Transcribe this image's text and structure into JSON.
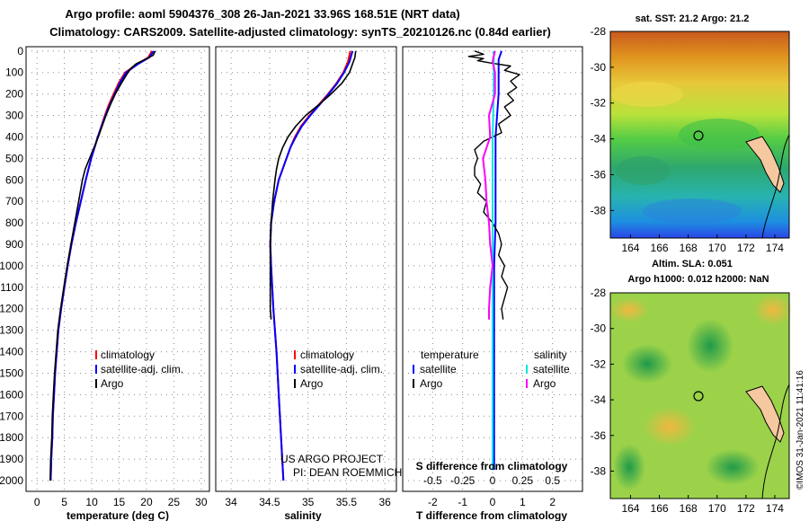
{
  "title_line1": "Argo profile: aoml 5904376_308 26-Jan-2021 33.96S 168.51E (NRT data)",
  "title_line2": "Climatology: CARS2009. Satellite-adjusted climatology: synTS_20210126.nc (0.84d earlier)",
  "credit": "©IMOS 31-Jan-2021 11:41:16",
  "colors": {
    "climatology": "#ff0000",
    "satellite_adj": "#0000ff",
    "argo": "#000000",
    "sal_satellite": "#00e5e5",
    "sal_argo": "#ff00ff"
  },
  "depth_ticks": [
    "0",
    "100",
    "200",
    "300",
    "400",
    "500",
    "600",
    "700",
    "800",
    "900",
    "1000",
    "1100",
    "1200",
    "1300",
    "1400",
    "1500",
    "1600",
    "1700",
    "1800",
    "1900",
    "2000"
  ],
  "chart_data": [
    {
      "type": "line",
      "name": "temperature",
      "xlabel": "temperature (deg C)",
      "ylabel": "depth",
      "xlim": [
        -2,
        31.5
      ],
      "ylim": [
        2050,
        -20
      ],
      "xticks": [
        "0",
        "5",
        "10",
        "15",
        "20",
        "25",
        "30"
      ],
      "legend": [
        "climatology",
        "satellite-adj. clim.",
        "Argo"
      ],
      "series": [
        {
          "name": "climatology",
          "depth": [
            0,
            30,
            60,
            100,
            150,
            200,
            250,
            300,
            400,
            500,
            600,
            700,
            800,
            900,
            1000,
            1100,
            1200,
            1300,
            1400,
            1500,
            1600,
            1700,
            1800,
            1900,
            2000
          ],
          "values": [
            21.0,
            20.3,
            18.4,
            16.1,
            14.9,
            14.0,
            13.1,
            12.4,
            11.1,
            9.9,
            8.9,
            8.0,
            7.1,
            6.3,
            5.6,
            5.0,
            4.4,
            3.9,
            3.6,
            3.3,
            3.1,
            2.9,
            2.8,
            2.6,
            2.5
          ]
        },
        {
          "name": "satellite-adj. clim.",
          "depth": [
            0,
            30,
            60,
            100,
            150,
            200,
            250,
            300,
            400,
            500,
            600,
            700,
            800,
            900,
            1000,
            1100,
            1200,
            1300,
            1400,
            1500,
            1600,
            1700,
            1800,
            1900,
            2000
          ],
          "values": [
            21.3,
            20.5,
            18.5,
            16.3,
            15.1,
            14.2,
            13.3,
            12.5,
            11.1,
            9.9,
            8.9,
            8.0,
            7.1,
            6.3,
            5.6,
            5.0,
            4.4,
            3.9,
            3.6,
            3.3,
            3.1,
            2.9,
            2.8,
            2.6,
            2.5
          ]
        },
        {
          "name": "Argo",
          "depth": [
            0,
            20,
            40,
            60,
            80,
            100,
            150,
            200,
            250,
            300,
            350,
            400,
            450,
            500,
            550,
            600,
            700,
            800,
            900,
            1000,
            1100,
            1200,
            1300,
            1400,
            1500,
            1600,
            1700,
            1800,
            1900,
            2000
          ],
          "values": [
            21.6,
            21.2,
            19.7,
            18.1,
            17.2,
            16.6,
            15.4,
            14.3,
            13.4,
            12.6,
            11.9,
            11.2,
            10.4,
            9.6,
            8.8,
            8.3,
            7.6,
            6.9,
            6.2,
            5.5,
            4.9,
            4.3,
            3.8,
            3.5,
            3.2,
            3.0,
            2.8,
            2.7,
            2.5,
            2.4
          ]
        }
      ]
    },
    {
      "type": "line",
      "name": "salinity",
      "xlabel": "salinity",
      "ylabel": "depth",
      "xlim": [
        33.8,
        36.15
      ],
      "ylim": [
        2050,
        -20
      ],
      "xticks": [
        "34",
        "34.5",
        "35",
        "35.5",
        "36"
      ],
      "legend": [
        "climatology",
        "satellite-adj. clim.",
        "Argo"
      ],
      "annotation": [
        "US ARGO PROJECT",
        "PI: DEAN ROEMMICH"
      ],
      "series": [
        {
          "name": "climatology",
          "depth": [
            0,
            50,
            100,
            150,
            200,
            250,
            300,
            350,
            400,
            450,
            500,
            600,
            700,
            800,
            900,
            1000,
            1200,
            1400,
            1600,
            1800,
            2000
          ],
          "values": [
            35.55,
            35.52,
            35.46,
            35.37,
            35.26,
            35.14,
            35.02,
            34.91,
            34.83,
            34.77,
            34.72,
            34.62,
            34.56,
            34.52,
            34.51,
            34.52,
            34.55,
            34.59,
            34.62,
            34.65,
            34.68
          ]
        },
        {
          "name": "satellite-adj. clim.",
          "depth": [
            0,
            50,
            100,
            150,
            200,
            250,
            300,
            350,
            400,
            450,
            500,
            600,
            700,
            800,
            900,
            1000,
            1200,
            1400,
            1600,
            1800,
            2000
          ],
          "values": [
            35.58,
            35.54,
            35.47,
            35.38,
            35.27,
            35.15,
            35.03,
            34.92,
            34.84,
            34.77,
            34.72,
            34.62,
            34.56,
            34.52,
            34.51,
            34.52,
            34.55,
            34.59,
            34.62,
            34.65,
            34.68
          ]
        },
        {
          "name": "Argo",
          "depth": [
            0,
            30,
            60,
            100,
            150,
            200,
            250,
            300,
            350,
            400,
            450,
            500,
            550,
            600,
            700,
            800,
            900,
            1000,
            1100,
            1200,
            1250
          ],
          "values": [
            35.62,
            35.61,
            35.58,
            35.54,
            35.44,
            35.3,
            35.14,
            34.97,
            34.84,
            34.74,
            34.67,
            34.62,
            34.59,
            34.57,
            34.54,
            34.52,
            34.51,
            34.51,
            34.51,
            34.51,
            34.52
          ]
        }
      ]
    },
    {
      "type": "line",
      "name": "difference",
      "xlabel": "T difference from climatology",
      "top_xlabel": "S difference from climatology",
      "xlim": [
        -3,
        3
      ],
      "ylim": [
        2050,
        -20
      ],
      "xticks": [
        "-2",
        "-1",
        "0",
        "1",
        "2"
      ],
      "top_xticks": [
        "-0.5",
        "-0.25",
        "0",
        "0.25",
        "0.5"
      ],
      "legend": {
        "temperature": [
          "satellite",
          "Argo"
        ],
        "salinity": [
          "satellite",
          "Argo"
        ]
      },
      "series": [
        {
          "name": "temperature satellite",
          "depth": [
            0,
            40,
            100,
            200,
            400,
            600,
            800,
            1000,
            1200,
            1400,
            1600,
            1800,
            1950
          ],
          "values": [
            0.3,
            0.2,
            0.2,
            0.2,
            0.1,
            0.1,
            0.1,
            0.05,
            0.05,
            0.05,
            0.05,
            0.05,
            0.05
          ]
        },
        {
          "name": "temperature Argo",
          "depth": [
            0,
            15,
            25,
            35,
            45,
            55,
            70,
            90,
            110,
            140,
            170,
            200,
            230,
            260,
            300,
            340,
            380,
            420,
            460,
            500,
            540,
            580,
            620,
            660,
            700,
            750,
            800,
            850,
            900,
            950,
            1000,
            1050,
            1100,
            1150,
            1200,
            1250
          ],
          "values": [
            -0.6,
            -0.3,
            -0.8,
            -0.3,
            -0.5,
            -0.1,
            0.6,
            0.4,
            0.9,
            0.6,
            0.8,
            0.5,
            0.7,
            0.4,
            0.6,
            0.2,
            0.3,
            -0.3,
            -0.6,
            -0.5,
            -0.6,
            -0.6,
            -0.4,
            -0.5,
            -0.2,
            -0.3,
            0.0,
            0.2,
            0.3,
            0.2,
            0.4,
            0.3,
            0.5,
            0.4,
            0.3,
            0.35
          ]
        },
        {
          "name": "salinity satellite",
          "depth": [
            0,
            100,
            200,
            400,
            600,
            800,
            1000,
            1200,
            1400,
            1600,
            1800,
            1950
          ],
          "values": [
            0.01,
            0.01,
            0.01,
            0.0,
            0.0,
            0.0,
            0.0,
            0.0,
            0.0,
            0.0,
            0.0,
            0.0
          ]
        },
        {
          "name": "salinity Argo",
          "depth": [
            0,
            50,
            100,
            200,
            300,
            400,
            500,
            600,
            700,
            800,
            900,
            1000,
            1100,
            1200,
            1250
          ],
          "values": [
            0.02,
            0.0,
            0.02,
            0.02,
            -0.03,
            -0.02,
            -0.08,
            -0.06,
            -0.05,
            -0.03,
            -0.02,
            0.0,
            -0.02,
            -0.03,
            -0.03
          ]
        }
      ]
    },
    {
      "type": "heatmap",
      "name": "sst_map",
      "title": "sat. SST: 21.2 Argo: 21.2",
      "xticks": [
        "164",
        "166",
        "168",
        "170",
        "172",
        "174"
      ],
      "yticks": [
        "-28",
        "-30",
        "-32",
        "-34",
        "-36",
        "-38"
      ],
      "marker": {
        "lon": 168.51,
        "lat": -33.96
      }
    },
    {
      "type": "heatmap",
      "name": "sla_map",
      "title_line1": "Altim. SLA: 0.051",
      "title_line2": "Argo h1000: 0.012 h2000: NaN",
      "xticks": [
        "164",
        "166",
        "168",
        "170",
        "172",
        "174"
      ],
      "yticks": [
        "-28",
        "-30",
        "-32",
        "-34",
        "-36",
        "-38"
      ],
      "marker": {
        "lon": 168.51,
        "lat": -33.96
      }
    }
  ]
}
